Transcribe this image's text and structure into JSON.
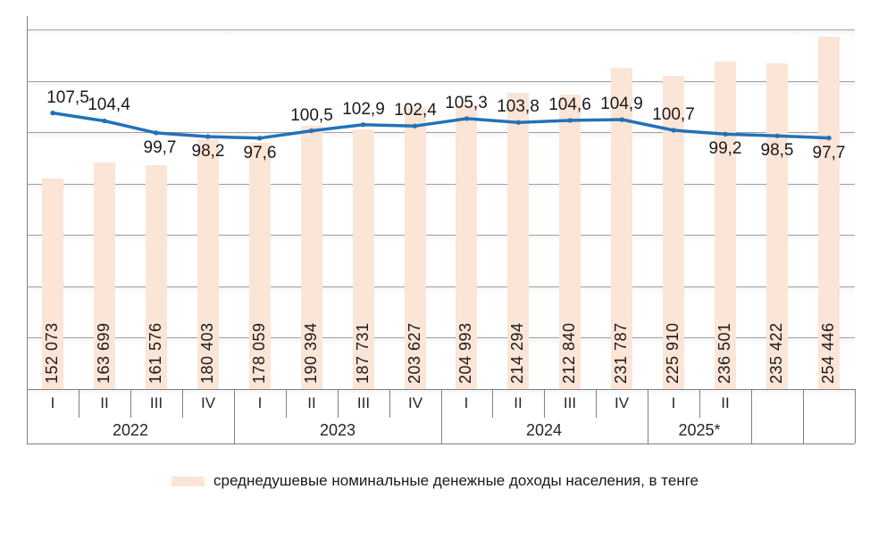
{
  "legend": {
    "label": "среднедушевые номинальные денежные доходы населения,  в тенге"
  },
  "colors": {
    "bar_fill": "#fbe5d6",
    "line": "#2272b8",
    "grid": "#9f9f9f",
    "axis": "#808080",
    "label_text": "#1a1a1a"
  },
  "chart_data": {
    "type": "bar+line combo",
    "grid": "on",
    "legend_position": "bottom",
    "gridline_count": 8,
    "quarter_labels": [
      "I",
      "II",
      "III",
      "IV",
      "I",
      "II",
      "III",
      "IV",
      "I",
      "II",
      "III",
      "IV",
      "I",
      "II",
      "",
      ""
    ],
    "year_groups": [
      {
        "label": "2022",
        "span": 4
      },
      {
        "label": "2023",
        "span": 4
      },
      {
        "label": "2024",
        "span": 4
      },
      {
        "label": "2025*",
        "span": 2
      },
      {
        "label": "",
        "span": 1
      },
      {
        "label": "",
        "span": 1
      }
    ],
    "bar_series": {
      "legend_label": "среднедушевые номинальные денежные доходы населения,  в тенге",
      "values": [
        152073,
        163699,
        161576,
        180403,
        178059,
        190394,
        187731,
        203627,
        204993,
        214294,
        212840,
        231787,
        225910,
        236501,
        235422,
        254446
      ],
      "labels": [
        "152 073",
        "163 699",
        "161 576",
        "180 403",
        "178 059",
        "190 394",
        "187 731",
        "203 627",
        "204 993",
        "214 294",
        "212 840",
        "231 787",
        "225 910",
        "236 501",
        "235 422",
        "254 446"
      ]
    },
    "line_series": {
      "values": [
        107.5,
        104.4,
        99.7,
        98.2,
        97.6,
        100.5,
        102.9,
        102.4,
        105.3,
        103.8,
        104.6,
        104.9,
        100.7,
        99.2,
        98.5,
        97.7
      ],
      "labels": [
        "107,5",
        "104,4",
        "99,7",
        "98,2",
        "97,6",
        "100,5",
        "102,9",
        "102,4",
        "105,3",
        "103,8",
        "104,6",
        "104,9",
        "100,7",
        "99,2",
        "98,5",
        "97,7"
      ],
      "label_positions": [
        "above",
        "above",
        "below",
        "below",
        "below",
        "above",
        "above",
        "above",
        "above",
        "above",
        "above",
        "above",
        "above",
        "below",
        "below",
        "below"
      ]
    }
  }
}
